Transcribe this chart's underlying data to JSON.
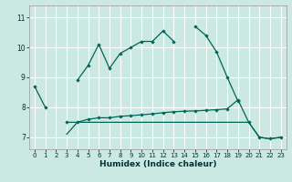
{
  "xlabel": "Humidex (Indice chaleur)",
  "background_color": "#cbe8e3",
  "grid_color": "#ffffff",
  "line_color": "#006655",
  "x": [
    0,
    1,
    2,
    3,
    4,
    5,
    6,
    7,
    8,
    9,
    10,
    11,
    12,
    13,
    14,
    15,
    16,
    17,
    18,
    19,
    20,
    21,
    22,
    23
  ],
  "line1_y": [
    8.7,
    8.0,
    null,
    null,
    8.9,
    9.4,
    10.1,
    9.3,
    9.8,
    10.0,
    10.2,
    10.2,
    10.55,
    10.2,
    null,
    10.7,
    10.4,
    9.85,
    9.0,
    8.2,
    null,
    null,
    null,
    null
  ],
  "line2_y": [
    null,
    null,
    null,
    7.5,
    7.5,
    7.6,
    7.65,
    7.65,
    7.7,
    7.72,
    7.75,
    7.78,
    7.82,
    7.85,
    7.87,
    7.88,
    7.9,
    7.92,
    7.95,
    8.25,
    7.5,
    7.0,
    6.95,
    7.0
  ],
  "line3_y": [
    null,
    null,
    null,
    7.1,
    7.5,
    7.5,
    7.5,
    7.5,
    7.5,
    7.5,
    7.5,
    7.5,
    7.5,
    7.5,
    7.5,
    7.5,
    7.5,
    7.5,
    7.5,
    7.5,
    7.5,
    7.0,
    6.95,
    7.0
  ],
  "ylim": [
    6.6,
    11.4
  ],
  "yticks": [
    7,
    8,
    9,
    10,
    11
  ],
  "xticks": [
    0,
    1,
    2,
    3,
    4,
    5,
    6,
    7,
    8,
    9,
    10,
    11,
    12,
    13,
    14,
    15,
    16,
    17,
    18,
    19,
    20,
    21,
    22,
    23
  ]
}
